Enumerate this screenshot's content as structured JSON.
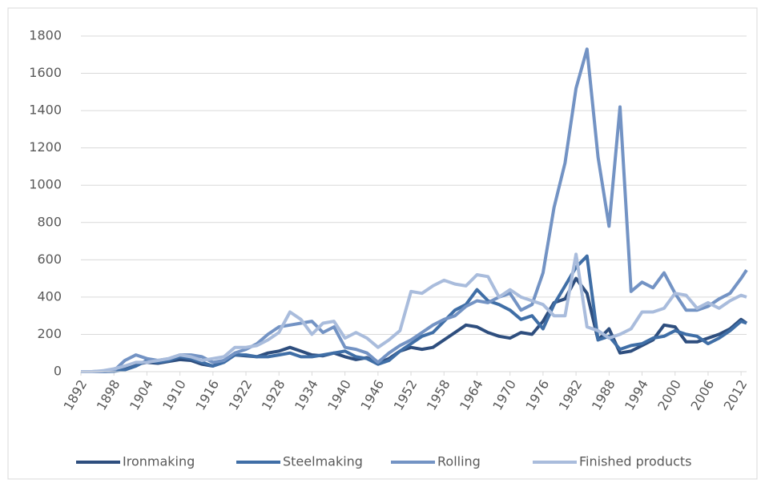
{
  "chart_data": {
    "type": "line",
    "x": [
      1892,
      1894,
      1896,
      1898,
      1900,
      1902,
      1904,
      1906,
      1908,
      1910,
      1912,
      1914,
      1916,
      1918,
      1920,
      1922,
      1924,
      1926,
      1928,
      1930,
      1932,
      1934,
      1936,
      1938,
      1940,
      1942,
      1944,
      1946,
      1948,
      1950,
      1952,
      1954,
      1956,
      1958,
      1960,
      1962,
      1964,
      1966,
      1968,
      1970,
      1972,
      1974,
      1976,
      1978,
      1980,
      1982,
      1984,
      1986,
      1988,
      1990,
      1992,
      1994,
      1996,
      1998,
      2000,
      2002,
      2004,
      2006,
      2008,
      2010,
      2012,
      2013
    ],
    "series": [
      {
        "name": "Ironmaking",
        "color": "#2e4e7e",
        "values": [
          0,
          0,
          2,
          5,
          20,
          40,
          50,
          45,
          55,
          65,
          60,
          40,
          30,
          60,
          90,
          85,
          80,
          100,
          110,
          130,
          110,
          90,
          85,
          100,
          80,
          65,
          75,
          45,
          70,
          110,
          130,
          120,
          130,
          170,
          210,
          250,
          240,
          210,
          190,
          180,
          210,
          200,
          270,
          370,
          390,
          500,
          420,
          170,
          230,
          100,
          110,
          140,
          170,
          250,
          240,
          160,
          160,
          180,
          200,
          230,
          280,
          260
        ]
      },
      {
        "name": "Steelmaking",
        "color": "#3f6ea6",
        "values": [
          0,
          0,
          0,
          2,
          10,
          30,
          60,
          50,
          60,
          80,
          70,
          50,
          30,
          50,
          90,
          90,
          80,
          80,
          90,
          100,
          80,
          80,
          90,
          100,
          110,
          80,
          70,
          40,
          60,
          110,
          150,
          190,
          210,
          270,
          330,
          360,
          440,
          380,
          360,
          330,
          280,
          300,
          230,
          360,
          460,
          560,
          620,
          170,
          190,
          120,
          140,
          150,
          180,
          190,
          220,
          200,
          190,
          150,
          180,
          220,
          270,
          260
        ]
      },
      {
        "name": "Rolling",
        "color": "#7393c4",
        "values": [
          0,
          0,
          0,
          5,
          60,
          90,
          70,
          60,
          70,
          90,
          90,
          80,
          50,
          60,
          100,
          120,
          150,
          200,
          240,
          250,
          260,
          270,
          210,
          240,
          130,
          120,
          100,
          50,
          100,
          140,
          170,
          210,
          250,
          280,
          300,
          350,
          380,
          370,
          400,
          420,
          330,
          360,
          530,
          880,
          1120,
          1520,
          1730,
          1150,
          780,
          1420,
          430,
          480,
          450,
          530,
          420,
          330,
          330,
          350,
          390,
          420,
          500,
          545
        ]
      },
      {
        "name": "Finished products",
        "color": "#a9bcdc",
        "values": [
          0,
          0,
          5,
          15,
          30,
          50,
          50,
          60,
          70,
          90,
          80,
          60,
          70,
          80,
          130,
          130,
          140,
          170,
          210,
          320,
          280,
          200,
          260,
          270,
          180,
          210,
          180,
          130,
          170,
          220,
          430,
          420,
          460,
          490,
          470,
          460,
          520,
          510,
          400,
          440,
          400,
          380,
          360,
          300,
          300,
          630,
          240,
          220,
          180,
          200,
          230,
          320,
          320,
          340,
          420,
          410,
          340,
          370,
          340,
          380,
          410,
          400
        ]
      }
    ],
    "xlim": [
      1892,
      2013
    ],
    "xticks": [
      1892,
      1898,
      1904,
      1910,
      1916,
      1922,
      1928,
      1934,
      1940,
      1946,
      1952,
      1958,
      1964,
      1970,
      1976,
      1982,
      1988,
      1994,
      2000,
      2006,
      2012
    ],
    "ylim": [
      0,
      1800
    ],
    "yticks": [
      0,
      200,
      400,
      600,
      800,
      1000,
      1200,
      1400,
      1600,
      1800
    ],
    "grid": true,
    "legend": "bottom"
  }
}
